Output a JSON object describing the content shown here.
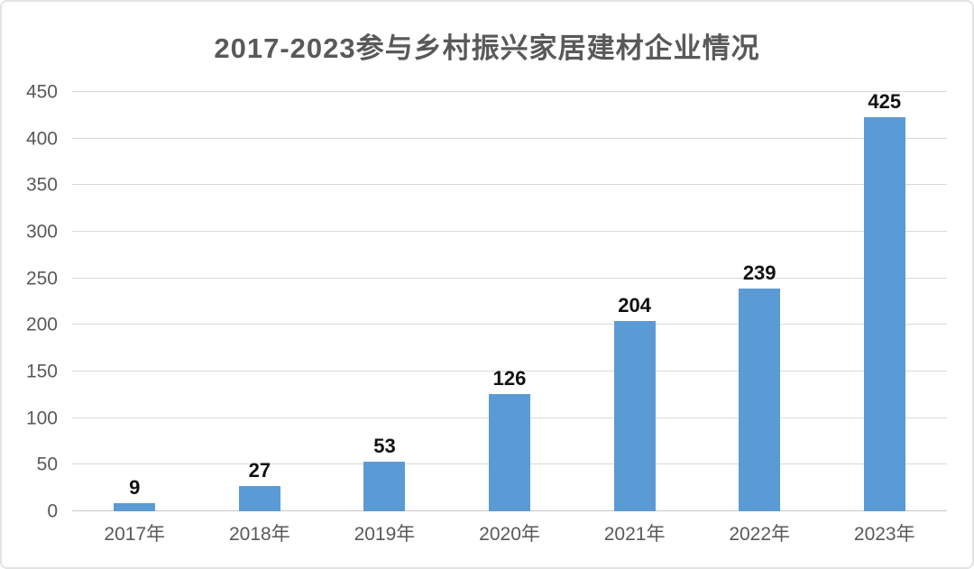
{
  "chart_data": {
    "type": "bar",
    "title": "2017-2023参与乡村振兴家居建材企业情况",
    "categories": [
      "2017年",
      "2018年",
      "2019年",
      "2020年",
      "2021年",
      "2022年",
      "2023年"
    ],
    "values": [
      9,
      27,
      53,
      126,
      204,
      239,
      425
    ],
    "data_labels": [
      9,
      27,
      53,
      126,
      204,
      239,
      425
    ],
    "y_ticks": [
      0,
      50,
      100,
      150,
      200,
      250,
      300,
      350,
      400,
      450
    ],
    "ylim": [
      0,
      450
    ],
    "xlabel": "",
    "ylabel": "",
    "grid": true,
    "legend_position": "none",
    "colors": {
      "bar": "#5b9bd5",
      "gridline": "#d9d9d9",
      "baseline": "#c8c8c8",
      "axis_text": "#595959",
      "title_text": "#595959",
      "data_label_text": "#111111",
      "card_border": "#e3e3e3",
      "background": "#ffffff"
    }
  }
}
